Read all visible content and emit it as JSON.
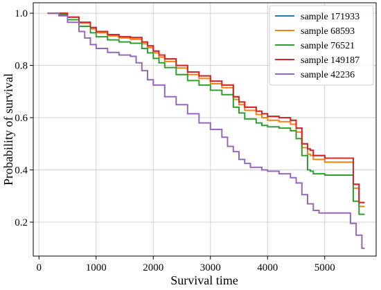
{
  "chart_data": {
    "type": "line",
    "title": "",
    "xlabel": "Survival time",
    "ylabel": "Probability of survival",
    "xlim": [
      -100,
      5900
    ],
    "ylim": [
      0.07,
      1.04
    ],
    "xticks": [
      0,
      1000,
      2000,
      3000,
      4000,
      5000
    ],
    "yticks": [
      0.2,
      0.4,
      0.6,
      0.8,
      1.0
    ],
    "xtick_labels": [
      "0",
      "1000",
      "2000",
      "3000",
      "4000",
      "5000"
    ],
    "ytick_labels": [
      "0.2",
      "0.4",
      "0.6",
      "0.8",
      "1.0"
    ],
    "grid": true,
    "legend_position": "top-right",
    "step": true,
    "series": [
      {
        "name": "sample 171933",
        "color": "#1f77b4",
        "x": [
          150,
          350,
          500,
          700,
          900,
          1000,
          1200,
          1400,
          1600,
          1800,
          1900,
          2000,
          2100,
          2200,
          2400,
          2600,
          2800,
          3000,
          3200,
          3400,
          3500,
          3600,
          3800,
          3900,
          4000,
          4200,
          4400,
          4500,
          4600,
          4700,
          4750,
          4800,
          5000,
          5200,
          5300,
          5450,
          5500,
          5600,
          5700
        ],
        "y": [
          1.0,
          1.0,
          0.985,
          0.965,
          0.945,
          0.93,
          0.918,
          0.91,
          0.907,
          0.89,
          0.875,
          0.855,
          0.84,
          0.825,
          0.8,
          0.775,
          0.76,
          0.74,
          0.725,
          0.68,
          0.66,
          0.64,
          0.625,
          0.615,
          0.605,
          0.6,
          0.59,
          0.56,
          0.5,
          0.48,
          0.475,
          0.455,
          0.445,
          0.445,
          0.445,
          0.445,
          0.345,
          0.275,
          0.275
        ]
      },
      {
        "name": "sample 68593",
        "color": "#ff7f0e",
        "x": [
          150,
          350,
          500,
          700,
          900,
          1000,
          1200,
          1400,
          1600,
          1800,
          1900,
          2000,
          2100,
          2200,
          2400,
          2600,
          2800,
          3000,
          3200,
          3400,
          3500,
          3600,
          3800,
          3900,
          4000,
          4200,
          4400,
          4500,
          4600,
          4700,
          4750,
          4800,
          5000,
          5200,
          5300,
          5450,
          5500,
          5600,
          5700
        ],
        "y": [
          1.0,
          1.0,
          0.985,
          0.962,
          0.94,
          0.925,
          0.913,
          0.905,
          0.9,
          0.883,
          0.868,
          0.848,
          0.832,
          0.815,
          0.79,
          0.765,
          0.75,
          0.73,
          0.715,
          0.67,
          0.65,
          0.628,
          0.612,
          0.6,
          0.59,
          0.585,
          0.575,
          0.545,
          0.485,
          0.46,
          0.455,
          0.44,
          0.43,
          0.43,
          0.43,
          0.43,
          0.33,
          0.26,
          0.26
        ]
      },
      {
        "name": "sample 76521",
        "color": "#2ca02c",
        "x": [
          150,
          350,
          500,
          700,
          900,
          1000,
          1200,
          1400,
          1600,
          1800,
          1900,
          2000,
          2100,
          2200,
          2400,
          2600,
          2800,
          3000,
          3200,
          3400,
          3500,
          3600,
          3800,
          3900,
          4000,
          4200,
          4400,
          4500,
          4600,
          4700,
          4750,
          4800,
          5000,
          5200,
          5300,
          5450,
          5500,
          5600,
          5700
        ],
        "y": [
          1.0,
          0.995,
          0.975,
          0.95,
          0.925,
          0.91,
          0.898,
          0.89,
          0.885,
          0.865,
          0.848,
          0.827,
          0.81,
          0.792,
          0.765,
          0.742,
          0.725,
          0.705,
          0.688,
          0.64,
          0.618,
          0.595,
          0.58,
          0.57,
          0.565,
          0.56,
          0.55,
          0.52,
          0.455,
          0.4,
          0.395,
          0.385,
          0.38,
          0.38,
          0.38,
          0.38,
          0.28,
          0.23,
          0.23
        ]
      },
      {
        "name": "sample 149187",
        "color": "#d62728",
        "x": [
          150,
          350,
          500,
          700,
          900,
          1000,
          1200,
          1400,
          1600,
          1800,
          1900,
          2000,
          2100,
          2200,
          2400,
          2600,
          2800,
          3000,
          3200,
          3400,
          3500,
          3600,
          3800,
          3900,
          4000,
          4200,
          4400,
          4500,
          4600,
          4700,
          4750,
          4800,
          5000,
          5200,
          5300,
          5450,
          5500,
          5600,
          5700
        ],
        "y": [
          1.0,
          1.0,
          0.985,
          0.965,
          0.945,
          0.93,
          0.918,
          0.91,
          0.907,
          0.89,
          0.875,
          0.855,
          0.84,
          0.825,
          0.8,
          0.775,
          0.76,
          0.74,
          0.725,
          0.68,
          0.66,
          0.64,
          0.625,
          0.615,
          0.605,
          0.6,
          0.59,
          0.56,
          0.5,
          0.48,
          0.475,
          0.455,
          0.445,
          0.445,
          0.445,
          0.445,
          0.345,
          0.275,
          0.275
        ]
      },
      {
        "name": "sample 42236",
        "color": "#9467bd",
        "x": [
          150,
          350,
          500,
          700,
          800,
          900,
          1000,
          1200,
          1400,
          1600,
          1700,
          1800,
          1900,
          2000,
          2200,
          2400,
          2600,
          2800,
          3000,
          3200,
          3300,
          3400,
          3500,
          3600,
          3700,
          3900,
          4000,
          4200,
          4400,
          4500,
          4600,
          4700,
          4800,
          4900,
          5000,
          5200,
          5300,
          5450,
          5550,
          5650,
          5700
        ],
        "y": [
          1.0,
          0.99,
          0.965,
          0.93,
          0.905,
          0.88,
          0.865,
          0.85,
          0.84,
          0.835,
          0.81,
          0.78,
          0.745,
          0.725,
          0.68,
          0.65,
          0.615,
          0.58,
          0.555,
          0.525,
          0.49,
          0.47,
          0.44,
          0.425,
          0.41,
          0.4,
          0.395,
          0.385,
          0.37,
          0.35,
          0.305,
          0.27,
          0.245,
          0.235,
          0.235,
          0.235,
          0.235,
          0.195,
          0.15,
          0.1,
          0.1
        ]
      }
    ]
  }
}
